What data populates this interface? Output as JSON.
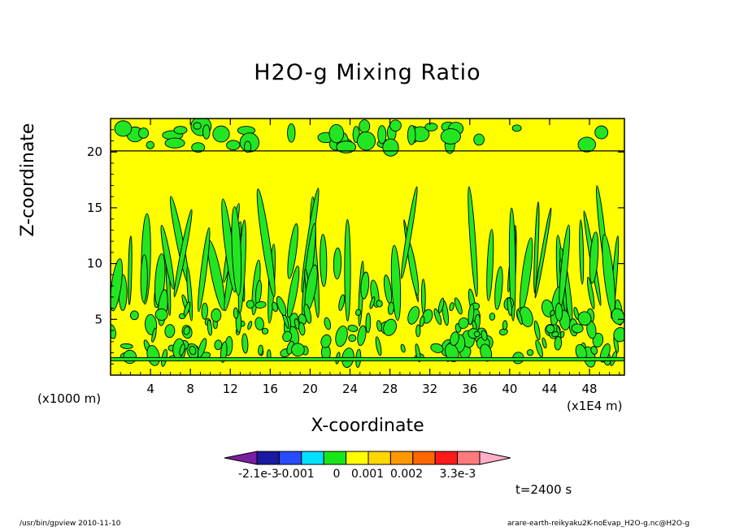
{
  "chart_data": {
    "type": "heatmap",
    "title": "H2O-g Mixing Ratio",
    "xlabel": "X-coordinate",
    "ylabel": "Z-coordinate",
    "x_unit": "(x1E4 m)",
    "y_unit": "(x1000 m)",
    "xlim": [
      0,
      51.5
    ],
    "ylim": [
      0,
      23
    ],
    "x_ticks": [
      4,
      8,
      12,
      16,
      20,
      24,
      28,
      32,
      36,
      40,
      44,
      48
    ],
    "y_ticks": [
      5,
      10,
      15,
      20
    ],
    "colorbar": {
      "labels": [
        "-2.1e-3",
        "-0.001",
        "0",
        "0.001",
        "0.002",
        "3.3e-3"
      ],
      "colors": [
        "#7a1fa0",
        "#1a1aa0",
        "#2a4aff",
        "#00e0ff",
        "#19e619",
        "#ffff00",
        "#ffd700",
        "#ff9900",
        "#ff6600",
        "#ff1a1a",
        "#ff7a7a",
        "#ffb0c8"
      ]
    },
    "field_colors": {
      "background": "#ffff00",
      "anomaly": "#22e622",
      "contour": "#000000"
    },
    "time": "t=2400 s"
  },
  "footer": {
    "left": "/usr/bin/gpview   2010-11-10",
    "right": "arare-earth-reikyaku2K-noEvap_H2O-g.nc@H2O-g"
  }
}
